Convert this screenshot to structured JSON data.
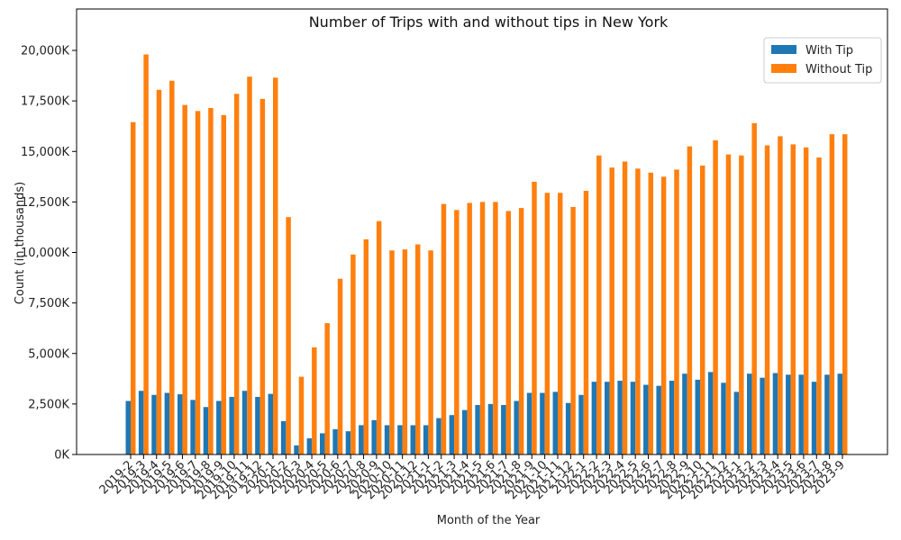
{
  "chart_data": {
    "type": "bar",
    "title": "Number of Trips with and without tips in New York",
    "xlabel": "Month of the Year",
    "ylabel": "Count (in thousands)",
    "ylim": [
      0,
      21000
    ],
    "yticks": [
      0,
      2500,
      5000,
      7500,
      10000,
      12500,
      15000,
      17500,
      20000
    ],
    "ytick_labels": [
      "0K",
      "2,500K",
      "5,000K",
      "7,500K",
      "10,000K",
      "12,500K",
      "15,000K",
      "17,500K",
      "20,000K"
    ],
    "legend_position": "top-right",
    "categories": [
      "2019-2",
      "2019-3",
      "2019-4",
      "2019-5",
      "2019-6",
      "2019-7",
      "2019-8",
      "2019-9",
      "2019-10",
      "2019-11",
      "2019-12",
      "2020-1",
      "2020-2",
      "2020-3",
      "2020-4",
      "2020-5",
      "2020-6",
      "2020-7",
      "2020-8",
      "2020-9",
      "2020-10",
      "2020-11",
      "2020-12",
      "2021-1",
      "2021-2",
      "2021-3",
      "2021-4",
      "2021-5",
      "2021-6",
      "2021-7",
      "2021-8",
      "2021-9",
      "2021-10",
      "2021-11",
      "2021-12",
      "2022-1",
      "2022-2",
      "2022-3",
      "2022-4",
      "2022-5",
      "2022-6",
      "2022-7",
      "2022-8",
      "2022-9",
      "2022-10",
      "2022-11",
      "2022-12",
      "2023-1",
      "2023-2",
      "2023-3",
      "2023-4",
      "2023-5",
      "2023-6",
      "2023-7",
      "2023-8",
      "2023-9"
    ],
    "series": [
      {
        "name": "With Tip",
        "color": "#1f77b4",
        "values": [
          2650,
          3150,
          2950,
          3050,
          2980,
          2700,
          2350,
          2650,
          2850,
          3150,
          2850,
          3000,
          1650,
          450,
          800,
          1050,
          1250,
          1150,
          1450,
          1700,
          1450,
          1450,
          1450,
          1450,
          1800,
          1950,
          2200,
          2450,
          2500,
          2450,
          2650,
          3050,
          3050,
          3100,
          2550,
          2950,
          3600,
          3600,
          3650,
          3600,
          3450,
          3400,
          3650,
          4000,
          3700,
          4080,
          3550,
          3100,
          4000,
          3800,
          4030,
          3950,
          3950,
          3600,
          3950,
          4000
        ]
      },
      {
        "name": "Without Tip",
        "color": "#ff7f0e",
        "values": [
          16450,
          19800,
          18050,
          18500,
          17300,
          17000,
          17150,
          16800,
          17850,
          18700,
          17600,
          18650,
          11750,
          3850,
          5300,
          6500,
          8700,
          9900,
          10650,
          11550,
          10100,
          10150,
          10400,
          10100,
          12400,
          12100,
          12450,
          12500,
          12500,
          12050,
          12200,
          13500,
          12950,
          12950,
          12250,
          13050,
          14800,
          14200,
          14500,
          14150,
          13950,
          13750,
          14100,
          15250,
          14300,
          15550,
          14850,
          14800,
          16400,
          15300,
          15750,
          15350,
          15200,
          14700,
          15850,
          15850
        ]
      }
    ]
  }
}
